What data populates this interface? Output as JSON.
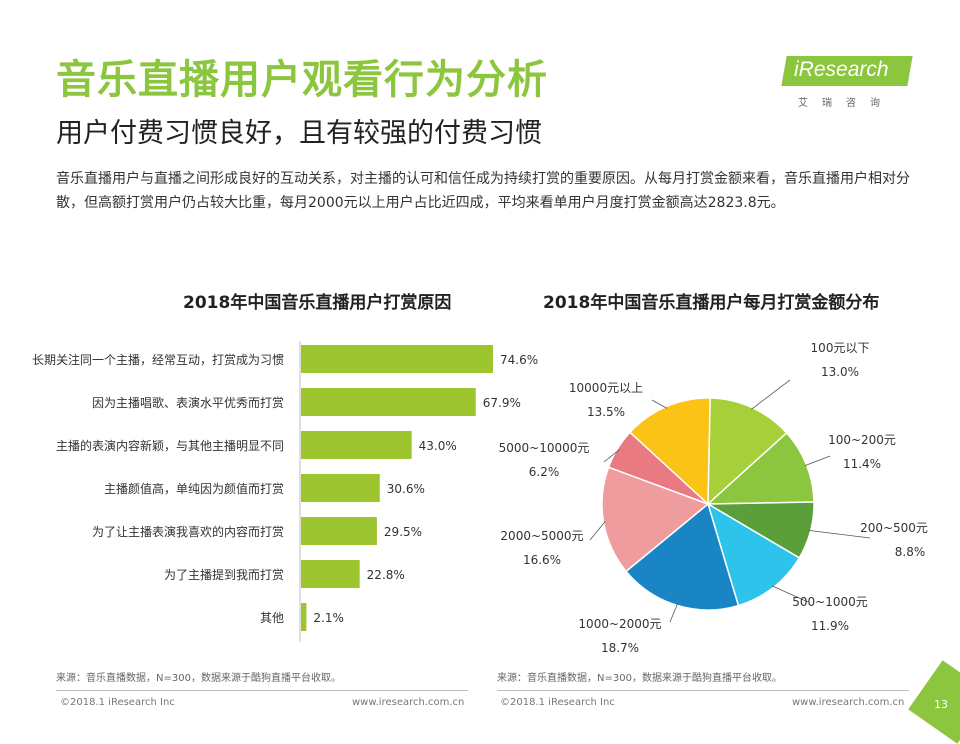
{
  "header": {
    "title": "音乐直播用户观看行为分析",
    "subtitle": "用户付费习惯良好，且有较强的付费习惯",
    "intro": "音乐直播用户与直播之间形成良好的互动关系，对主播的认可和信任成为持续打赏的重要原因。从每月打赏金额来看，音乐直播用户相对分散，但高额打赏用户仍占较大比重，每月2000元以上用户占比近四成，平均来看单用户月度打赏金额高达2823.8元。"
  },
  "logo": {
    "text": "iResearch",
    "sub": "艾瑞咨询"
  },
  "colors": {
    "accent": "#8cc63f"
  },
  "chart_data": [
    {
      "type": "bar",
      "orientation": "horizontal",
      "title": "2018年中国音乐直播用户打赏原因",
      "categories": [
        "长期关注同一个主播，经常互动，打赏成为习惯",
        "因为主播唱歌、表演水平优秀而打赏",
        "主播的表演内容新颖，与其他主播明显不同",
        "主播颜值高，单纯因为颜值而打赏",
        "为了让主播表演我喜欢的内容而打赏",
        "为了主播提到我而打赏",
        "其他"
      ],
      "values": [
        74.6,
        67.9,
        43.0,
        30.6,
        29.5,
        22.8,
        2.1
      ],
      "value_labels": [
        "74.6%",
        "67.9%",
        "43.0%",
        "30.6%",
        "29.5%",
        "22.8%",
        "2.1%"
      ],
      "color": "#9dc530"
    },
    {
      "type": "pie",
      "title": "2018年中国音乐直播用户每月打赏金额分布",
      "slices": [
        {
          "label": "100元以下",
          "value": 13.0,
          "value_label": "13.0%",
          "color": "#a7cf3a"
        },
        {
          "label": "100~200元",
          "value": 11.4,
          "value_label": "11.4%",
          "color": "#8cc63f"
        },
        {
          "label": "200~500元",
          "value": 8.8,
          "value_label": "8.8%",
          "color": "#5a9f3a"
        },
        {
          "label": "500~1000元",
          "value": 11.9,
          "value_label": "11.9%",
          "color": "#2ec3ea"
        },
        {
          "label": "1000~2000元",
          "value": 18.7,
          "value_label": "18.7%",
          "color": "#1a85c5"
        },
        {
          "label": "2000~5000元",
          "value": 16.6,
          "value_label": "16.6%",
          "color": "#ef9c9f"
        },
        {
          "label": "5000~10000元",
          "value": 6.2,
          "value_label": "6.2%",
          "color": "#e97a82"
        },
        {
          "label": "10000元以上",
          "value": 13.5,
          "value_label": "13.5%",
          "color": "#fbc315"
        }
      ]
    }
  ],
  "sources": {
    "left": "来源：音乐直播数据，N=300，数据来源于酷狗直播平台收取。",
    "right": "来源：音乐直播数据，N=300，数据来源于酷狗直播平台收取。"
  },
  "footer": {
    "copyright": "©2018.1 iResearch Inc",
    "website": "www.iresearch.com.cn",
    "page": "13"
  }
}
